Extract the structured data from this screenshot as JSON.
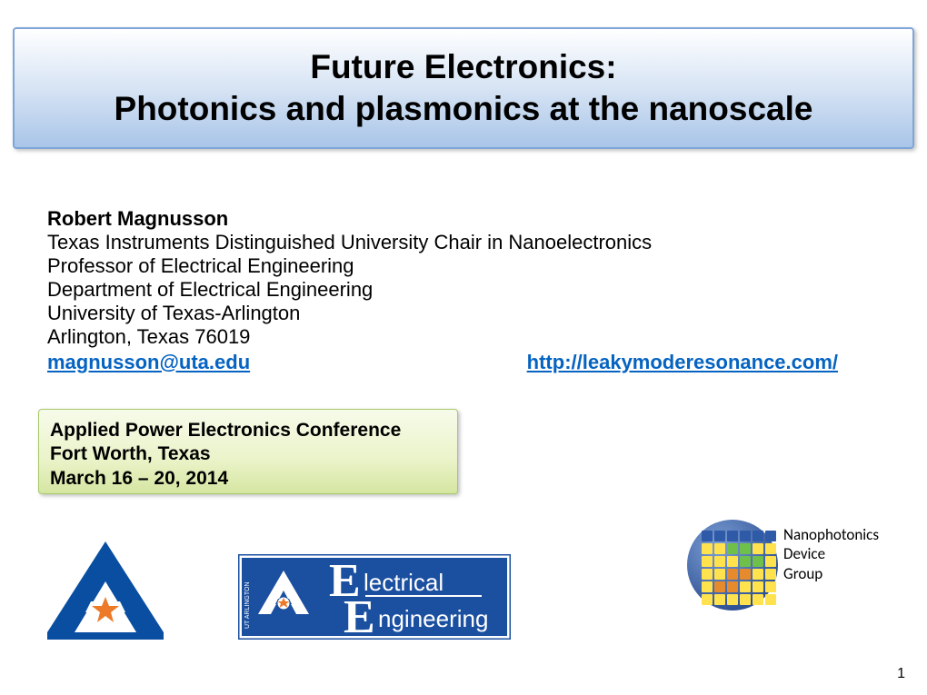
{
  "title": {
    "line1": "Future Electronics:",
    "line2": "Photonics and plasmonics at the nanoscale",
    "fontsize": 37,
    "color": "#000000",
    "box_border": "#7ea6d9",
    "box_gradient_top": "#ffffff",
    "box_gradient_bottom": "#a9c5e8"
  },
  "author": {
    "name": "Robert Magnusson",
    "lines": [
      "Texas Instruments Distinguished University Chair in Nanoelectronics",
      "Professor of Electrical Engineering",
      "Department of Electrical Engineering",
      "University of Texas-Arlington",
      "Arlington, Texas 76019"
    ],
    "email_text": "magnusson@uta.edu",
    "website_text": "http://leakymoderesonance.com/",
    "fontsize": 22,
    "link_color": "#0563c1"
  },
  "conference": {
    "line1": "Applied Power Electronics Conference",
    "line2": "Fort Worth, Texas",
    "line3": "March 16 – 20, 2014",
    "fontsize": 21,
    "box_border": "#a8c96b",
    "box_gradient_top": "#f7fbea",
    "box_gradient_bottom": "#d5e6a1"
  },
  "page_number": "1",
  "logos": {
    "uta_a": {
      "primary": "#0a4ea2",
      "accent": "#ec7a28",
      "white": "#ffffff"
    },
    "ee_banner": {
      "bg": "#1b4fa0",
      "text": "#ffffff",
      "line1_small": "lectrical",
      "line2_small": "ngineering"
    },
    "npg": {
      "circle": "#3a5fa6",
      "grid_colors": [
        "#2e5aa8",
        "#2e5aa8",
        "#2e5aa8",
        "#2e5aa8",
        "#2e5aa8",
        "#2e5aa8",
        "#ffe24d",
        "#ffe24d",
        "#6fbf4b",
        "#6fbf4b",
        "#ffe24d",
        "#ffe24d",
        "#ffe24d",
        "#ffe24d",
        "#ffe24d",
        "#6fbf4b",
        "#6fbf4b",
        "#ffe24d",
        "#ffe24d",
        "#ffe24d",
        "#e58b2e",
        "#e58b2e",
        "#ffe24d",
        "#ffe24d",
        "#ffe24d",
        "#e58b2e",
        "#e58b2e",
        "#ffe24d",
        "#ffe24d",
        "#ffe24d",
        "#ffe24d",
        "#ffe24d",
        "#ffe24d",
        "#ffe24d",
        "#ffe24d",
        "#ffe24d"
      ],
      "label1": "Nanophotonics",
      "label2": "Device",
      "label3": "Group"
    }
  }
}
